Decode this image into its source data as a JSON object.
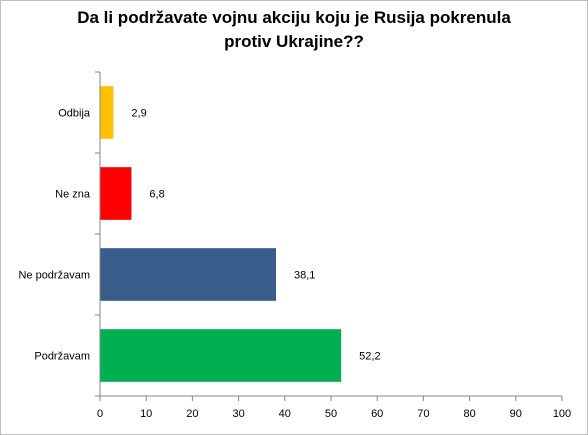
{
  "chart_data": {
    "type": "bar",
    "orientation": "horizontal",
    "title_lines": [
      "Da li podržavate vojnu akciju koju je Rusija pokrenula",
      "protiv Ukrajine??"
    ],
    "categories": [
      "Odbija",
      "Ne zna",
      "Ne podržavam",
      "Podržavam"
    ],
    "values": [
      2.9,
      6.8,
      38.1,
      52.2
    ],
    "value_labels": [
      "2,9",
      "6,8",
      "38,1",
      "52,2"
    ],
    "colors": [
      "#FFC000",
      "#FF0000",
      "#385D8A",
      "#00B050"
    ],
    "xlim": [
      0,
      100
    ],
    "xticks": [
      0,
      10,
      20,
      30,
      40,
      50,
      60,
      70,
      80,
      90,
      100
    ],
    "grid": false,
    "legend": "none"
  }
}
